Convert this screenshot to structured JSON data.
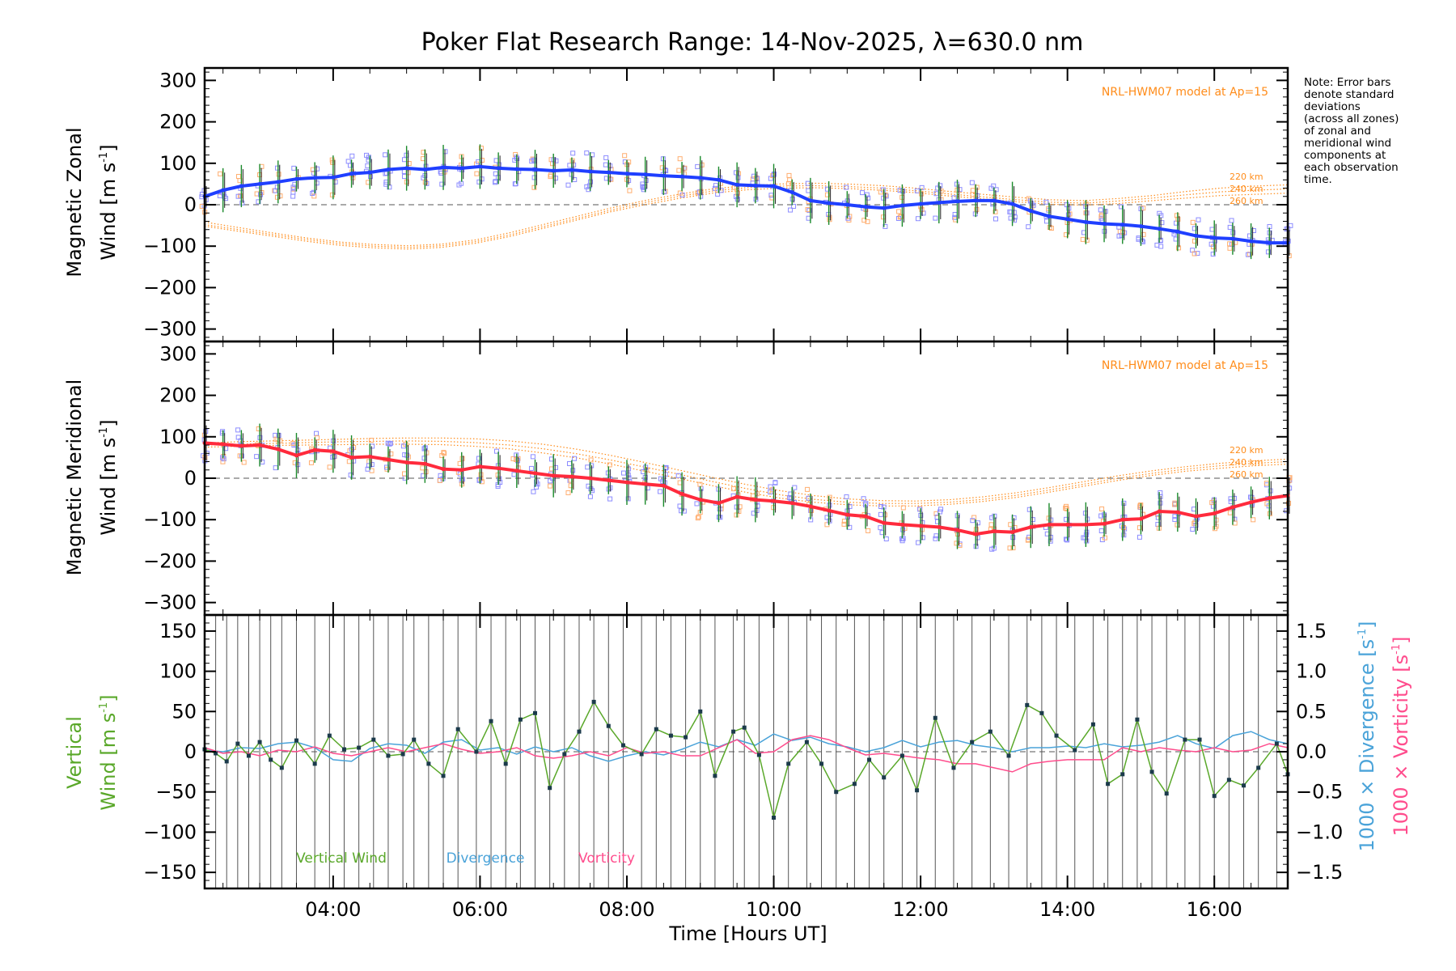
{
  "title": "Poker Flat Research Range: 14-Nov-2025, λ=630.0 nm",
  "note_lines": [
    "Note: Error bars",
    "denote standard",
    "deviations",
    "(across all zones)",
    "of zonal and",
    "meridional wind",
    "components at",
    "each observation",
    "time."
  ],
  "colors": {
    "zonal": "#1f3fff",
    "meridional": "#ff2a3c",
    "model": "#ff8c1a",
    "vertical": "#5aa82a",
    "divergence": "#4aa3d9",
    "vorticity": "#ff4d8d",
    "zone_blue": "#8c8cff",
    "zone_orange": "#ffae70",
    "error": "#1a8a2a"
  },
  "chart_data": [
    {
      "type": "line",
      "panel": "zonal",
      "ylabel_line1": "Magnetic Zonal",
      "ylabel_line2": "Wind [m s",
      "ylabel_sup": "-1",
      "ylabel_close": "]",
      "ylim": [
        -330,
        330
      ],
      "yticks": [
        -300,
        -200,
        -100,
        0,
        100,
        200,
        300
      ],
      "ytick_labels": [
        "−300",
        "−200",
        "−100",
        "0",
        "100",
        "200",
        "300"
      ],
      "model_label": "NRL-HWM07 model at Ap=15",
      "model_altitudes": [
        "220 km",
        "240 km",
        "260 km"
      ],
      "x_hours": [
        2.25,
        2.5,
        2.75,
        3.0,
        3.25,
        3.5,
        3.75,
        4.0,
        4.25,
        4.5,
        4.75,
        5.0,
        5.25,
        5.5,
        5.75,
        6.0,
        6.25,
        6.5,
        6.75,
        7.0,
        7.25,
        7.5,
        7.75,
        8.0,
        8.25,
        8.5,
        8.75,
        9.0,
        9.25,
        9.5,
        9.75,
        10.0,
        10.25,
        10.5,
        10.75,
        11.0,
        11.25,
        11.5,
        11.75,
        12.0,
        12.25,
        12.5,
        12.75,
        13.0,
        13.25,
        13.5,
        13.75,
        14.0,
        14.25,
        14.5,
        14.75,
        15.0,
        15.25,
        15.5,
        15.75,
        16.0,
        16.25,
        16.5,
        16.75,
        17.0
      ],
      "values": [
        20,
        35,
        45,
        50,
        55,
        62,
        65,
        66,
        75,
        78,
        85,
        88,
        85,
        90,
        88,
        92,
        88,
        86,
        85,
        82,
        84,
        80,
        78,
        75,
        73,
        70,
        68,
        65,
        60,
        48,
        46,
        45,
        30,
        10,
        4,
        0,
        -5,
        -8,
        -2,
        2,
        5,
        8,
        10,
        10,
        2,
        -15,
        -28,
        -35,
        -42,
        -46,
        -48,
        -52,
        -58,
        -65,
        -75,
        -80,
        -82,
        -88,
        -92,
        -92
      ],
      "model_series": [
        {
          "name": "220 km",
          "values": [
            -42,
            -55,
            -68,
            -80,
            -90,
            -96,
            -99,
            -95,
            -85,
            -68,
            -48,
            -28,
            -8,
            10,
            25,
            38,
            46,
            50,
            52,
            50,
            46,
            40,
            32,
            25,
            18,
            12,
            10,
            15,
            22,
            32,
            40,
            45,
            48
          ]
        },
        {
          "name": "240 km",
          "values": [
            -48,
            -60,
            -72,
            -84,
            -94,
            -100,
            -103,
            -99,
            -89,
            -73,
            -53,
            -33,
            -13,
            5,
            20,
            33,
            41,
            45,
            46,
            44,
            40,
            34,
            26,
            19,
            12,
            6,
            4,
            9,
            16,
            24,
            31,
            35,
            38
          ]
        },
        {
          "name": "260 km",
          "values": [
            -52,
            -64,
            -76,
            -88,
            -98,
            -104,
            -107,
            -103,
            -93,
            -77,
            -57,
            -37,
            -17,
            0,
            15,
            28,
            36,
            40,
            41,
            39,
            35,
            29,
            21,
            14,
            7,
            1,
            -1,
            3,
            10,
            16,
            22,
            25,
            28
          ]
        }
      ]
    },
    {
      "type": "line",
      "panel": "meridional",
      "ylabel_line1": "Magnetic Meridional",
      "ylabel_line2": "Wind [m s",
      "ylabel_sup": "-1",
      "ylabel_close": "]",
      "ylim": [
        -330,
        330
      ],
      "yticks": [
        -300,
        -200,
        -100,
        0,
        100,
        200,
        300
      ],
      "ytick_labels": [
        "−300",
        "−200",
        "−100",
        "0",
        "100",
        "200",
        "300"
      ],
      "model_label": "NRL-HWM07 model at Ap=15",
      "model_altitudes": [
        "220 km",
        "240 km",
        "260 km"
      ],
      "x_hours": [
        2.25,
        2.5,
        2.75,
        3.0,
        3.25,
        3.5,
        3.75,
        4.0,
        4.25,
        4.5,
        4.75,
        5.0,
        5.25,
        5.5,
        5.75,
        6.0,
        6.25,
        6.5,
        6.75,
        7.0,
        7.25,
        7.5,
        7.75,
        8.0,
        8.25,
        8.5,
        8.75,
        9.0,
        9.25,
        9.5,
        9.75,
        10.0,
        10.25,
        10.5,
        10.75,
        11.0,
        11.25,
        11.5,
        11.75,
        12.0,
        12.25,
        12.5,
        12.75,
        13.0,
        13.25,
        13.5,
        13.75,
        14.0,
        14.25,
        14.5,
        14.75,
        15.0,
        15.25,
        15.5,
        15.75,
        16.0,
        16.25,
        16.5,
        16.75,
        17.0
      ],
      "values": [
        85,
        82,
        78,
        80,
        70,
        55,
        68,
        65,
        50,
        52,
        45,
        38,
        35,
        22,
        20,
        28,
        24,
        18,
        12,
        6,
        4,
        0,
        -5,
        -10,
        -14,
        -18,
        -38,
        -52,
        -60,
        -45,
        -52,
        -55,
        -60,
        -68,
        -78,
        -88,
        -92,
        -108,
        -112,
        -115,
        -118,
        -125,
        -135,
        -128,
        -130,
        -118,
        -112,
        -112,
        -112,
        -110,
        -100,
        -98,
        -80,
        -82,
        -92,
        -85,
        -70,
        -58,
        -48,
        -42
      ],
      "model_series": [
        {
          "name": "220 km",
          "values": [
            85,
            88,
            90,
            92,
            94,
            96,
            97,
            97,
            95,
            90,
            82,
            70,
            55,
            38,
            20,
            2,
            -15,
            -30,
            -42,
            -50,
            -54,
            -55,
            -52,
            -45,
            -35,
            -22,
            -8,
            6,
            18,
            28,
            36,
            42,
            46
          ]
        },
        {
          "name": "240 km",
          "values": [
            80,
            82,
            84,
            86,
            88,
            89,
            90,
            89,
            86,
            80,
            71,
            59,
            44,
            27,
            10,
            -8,
            -25,
            -40,
            -51,
            -58,
            -61,
            -61,
            -58,
            -51,
            -41,
            -28,
            -14,
            0,
            12,
            22,
            30,
            36,
            40
          ]
        },
        {
          "name": "260 km",
          "values": [
            75,
            77,
            79,
            80,
            81,
            82,
            82,
            81,
            77,
            71,
            61,
            49,
            34,
            17,
            0,
            -18,
            -34,
            -48,
            -58,
            -64,
            -67,
            -67,
            -63,
            -56,
            -46,
            -33,
            -19,
            -5,
            7,
            17,
            24,
            30,
            34
          ]
        }
      ]
    },
    {
      "type": "line",
      "panel": "vertical",
      "ylabel_line1": "Vertical",
      "ylabel_line2": "Wind [m s",
      "ylabel_sup": "-1",
      "ylabel_close": "]",
      "ylim": [
        -170,
        170
      ],
      "yticks": [
        -150,
        -100,
        -50,
        0,
        50,
        100,
        150
      ],
      "ytick_labels": [
        "−150",
        "−100",
        "−50",
        "0",
        "50",
        "100",
        "150"
      ],
      "y2ticks": [
        -1.5,
        -1.0,
        -0.5,
        0.0,
        0.5,
        1.0,
        1.5
      ],
      "y2tick_labels": [
        "−1.5",
        "−1.0",
        "−0.5",
        "0.0",
        "0.5",
        "1.0",
        "1.5"
      ],
      "y2label_div": "1000 × Divergence [s",
      "y2label_vor": "1000 × Vorticity [s",
      "y2label_sup": "-1",
      "y2label_close": "]",
      "legend": [
        "Vertical Wind",
        "Divergence",
        "Vorticity"
      ],
      "vertical_wind": {
        "x_hours": [
          2.25,
          2.4,
          2.55,
          2.7,
          2.85,
          3.0,
          3.15,
          3.3,
          3.5,
          3.75,
          3.95,
          4.15,
          4.35,
          4.55,
          4.75,
          4.95,
          5.1,
          5.3,
          5.5,
          5.7,
          5.95,
          6.15,
          6.35,
          6.55,
          6.75,
          6.95,
          7.15,
          7.35,
          7.55,
          7.75,
          7.95,
          8.2,
          8.4,
          8.6,
          8.8,
          9.0,
          9.2,
          9.45,
          9.6,
          9.8,
          10.0,
          10.2,
          10.45,
          10.65,
          10.85,
          11.1,
          11.3,
          11.5,
          11.75,
          11.95,
          12.2,
          12.45,
          12.7,
          12.95,
          13.2,
          13.45,
          13.65,
          13.85,
          14.1,
          14.35,
          14.55,
          14.75,
          14.95,
          15.15,
          15.35,
          15.6,
          15.8,
          16.0,
          16.2,
          16.4,
          16.6,
          16.85,
          17.0
        ],
        "values": [
          3,
          -2,
          -12,
          10,
          -5,
          12,
          -10,
          -20,
          14,
          -15,
          20,
          3,
          5,
          15,
          -5,
          -3,
          15,
          -15,
          -30,
          28,
          0,
          38,
          -15,
          40,
          48,
          -45,
          -3,
          25,
          62,
          32,
          8,
          -3,
          28,
          20,
          18,
          50,
          -30,
          25,
          30,
          -4,
          -82,
          -15,
          12,
          -15,
          -50,
          -40,
          -10,
          -32,
          -5,
          -48,
          42,
          -20,
          12,
          25,
          -5,
          58,
          48,
          20,
          2,
          34,
          -40,
          -28,
          40,
          -25,
          -52,
          15,
          15,
          -55,
          -35,
          -42,
          -20,
          10,
          -28
        ]
      },
      "divergence": {
        "x_hours": [
          2.25,
          2.5,
          2.75,
          3.0,
          3.25,
          3.5,
          3.75,
          4.0,
          4.25,
          4.5,
          4.75,
          5.0,
          5.25,
          5.5,
          5.75,
          6.0,
          6.25,
          6.5,
          6.75,
          7.0,
          7.25,
          7.5,
          7.75,
          8.0,
          8.25,
          8.5,
          8.75,
          9.0,
          9.25,
          9.5,
          9.75,
          10.0,
          10.25,
          10.5,
          10.75,
          11.0,
          11.25,
          11.5,
          11.75,
          12.0,
          12.25,
          12.5,
          12.75,
          13.0,
          13.25,
          13.5,
          13.75,
          14.0,
          14.25,
          14.5,
          14.75,
          15.0,
          15.25,
          15.5,
          15.75,
          16.0,
          16.25,
          16.5,
          16.75,
          17.0
        ],
        "values": [
          0.02,
          0.0,
          0.05,
          0.04,
          0.1,
          0.12,
          0.05,
          -0.1,
          -0.12,
          0.04,
          0.1,
          0.08,
          -0.02,
          0.12,
          0.15,
          0.02,
          0.05,
          -0.03,
          0.06,
          0.0,
          0.05,
          -0.05,
          -0.12,
          -0.05,
          0.0,
          -0.04,
          0.03,
          0.12,
          0.06,
          0.15,
          0.08,
          0.22,
          0.14,
          0.18,
          0.1,
          0.06,
          0.0,
          0.05,
          0.14,
          0.06,
          0.12,
          0.14,
          0.08,
          0.05,
          0.0,
          0.05,
          0.05,
          0.07,
          0.05,
          0.1,
          0.06,
          0.08,
          0.12,
          0.2,
          0.1,
          0.04,
          0.2,
          0.25,
          0.15,
          0.1
        ]
      },
      "vorticity": {
        "x_hours": [
          2.25,
          2.5,
          2.75,
          3.0,
          3.25,
          3.5,
          3.75,
          4.0,
          4.25,
          4.5,
          4.75,
          5.0,
          5.25,
          5.5,
          5.75,
          6.0,
          6.25,
          6.5,
          6.75,
          7.0,
          7.25,
          7.5,
          7.75,
          8.0,
          8.25,
          8.5,
          8.75,
          9.0,
          9.25,
          9.5,
          9.75,
          10.0,
          10.25,
          10.5,
          10.75,
          11.0,
          11.25,
          11.5,
          11.75,
          12.0,
          12.25,
          12.5,
          12.75,
          13.0,
          13.25,
          13.5,
          13.75,
          14.0,
          14.25,
          14.5,
          14.75,
          15.0,
          15.25,
          15.5,
          15.75,
          16.0,
          16.25,
          16.5,
          16.75,
          17.0
        ],
        "values": [
          0.05,
          -0.02,
          0.0,
          -0.05,
          0.02,
          0.0,
          0.06,
          -0.02,
          -0.05,
          0.0,
          0.05,
          0.0,
          0.05,
          0.1,
          0.03,
          -0.02,
          0.0,
          0.05,
          -0.05,
          -0.08,
          -0.05,
          0.0,
          -0.05,
          0.05,
          -0.02,
          0.0,
          -0.05,
          -0.05,
          0.05,
          0.15,
          -0.02,
          0.0,
          0.15,
          0.2,
          0.15,
          0.05,
          -0.04,
          -0.02,
          -0.05,
          -0.08,
          -0.1,
          -0.15,
          -0.15,
          -0.2,
          -0.25,
          -0.15,
          -0.12,
          -0.1,
          -0.1,
          -0.1,
          0.05,
          0.0,
          0.05,
          0.02,
          0.0,
          0.05,
          0.0,
          0.02,
          0.1,
          0.05
        ]
      }
    }
  ],
  "x_axis": {
    "label": "Time [Hours UT]",
    "xlim_hours": [
      2.25,
      17.0
    ],
    "ticks": [
      4,
      6,
      8,
      10,
      12,
      14,
      16
    ],
    "tick_labels": [
      "04:00",
      "06:00",
      "08:00",
      "10:00",
      "12:00",
      "14:00",
      "16:00"
    ]
  }
}
